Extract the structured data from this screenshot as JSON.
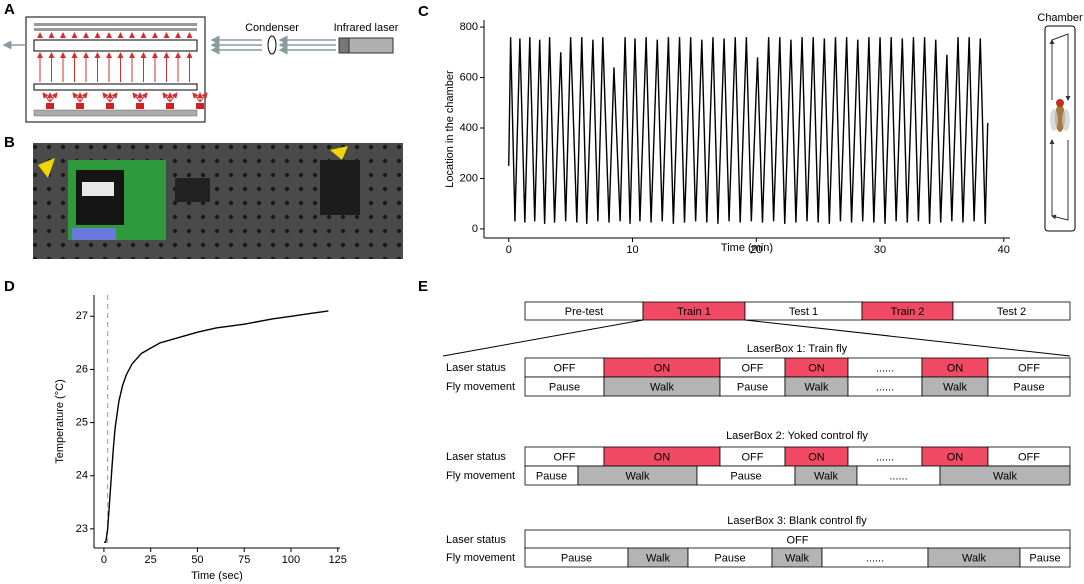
{
  "panel_labels": [
    "A",
    "B",
    "C",
    "D",
    "E"
  ],
  "panel_a": {
    "labels": [
      "Condenser",
      "Infrared laser"
    ]
  },
  "chamber_label": "Chamber",
  "chart_data": [
    {
      "type": "line",
      "xlabel": "Time (min)",
      "ylabel": "Location in the chamber",
      "color": "#000000",
      "x": [
        0,
        0.15,
        0.5,
        0.9,
        1.3,
        1.7,
        2.1,
        2.5,
        2.9,
        3.3,
        3.7,
        4.2,
        4.6,
        5.0,
        5.5,
        5.9,
        6.3,
        6.8,
        7.2,
        7.6,
        8.1,
        8.5,
        9.0,
        9.4,
        9.8,
        10.2,
        10.6,
        11.1,
        11.5,
        12.0,
        12.4,
        12.9,
        13.3,
        13.8,
        14.2,
        14.7,
        15.1,
        15.6,
        16.0,
        16.5,
        16.9,
        17.4,
        17.8,
        18.3,
        18.7,
        19.2,
        19.6,
        20.1,
        20.5,
        21.0,
        21.4,
        21.9,
        22.3,
        22.8,
        23.2,
        23.7,
        24.1,
        24.6,
        25.0,
        25.5,
        25.9,
        26.4,
        26.8,
        27.3,
        27.7,
        28.2,
        28.6,
        29.1,
        29.5,
        30.0,
        30.4,
        30.9,
        31.3,
        31.8,
        32.2,
        32.7,
        33.1,
        33.6,
        34.0,
        34.5,
        34.9,
        35.4,
        35.8,
        36.3,
        36.7,
        37.2,
        37.6,
        38.1,
        38.5,
        38.7
      ],
      "values": [
        250,
        760,
        30,
        755,
        25,
        760,
        30,
        750,
        20,
        760,
        25,
        700,
        30,
        760,
        25,
        760,
        20,
        750,
        30,
        760,
        25,
        640,
        30,
        760,
        20,
        755,
        30,
        760,
        25,
        750,
        30,
        760,
        20,
        760,
        25,
        760,
        30,
        750,
        25,
        760,
        20,
        755,
        30,
        760,
        25,
        760,
        30,
        680,
        25,
        760,
        30,
        760,
        20,
        750,
        25,
        760,
        30,
        760,
        25,
        755,
        20,
        760,
        30,
        760,
        25,
        750,
        30,
        760,
        25,
        760,
        20,
        760,
        30,
        755,
        25,
        760,
        30,
        760,
        20,
        750,
        25,
        690,
        30,
        760,
        25,
        760,
        30,
        755,
        20,
        420
      ],
      "xlim": [
        -2.0,
        40.5
      ],
      "ylim": [
        -36,
        828
      ],
      "xticks": [
        0,
        10,
        20,
        30,
        40
      ],
      "yticks": [
        0,
        200,
        400,
        600,
        800
      ]
    },
    {
      "type": "line",
      "xlabel": "Time (sec)",
      "ylabel": "Temperature (°C)",
      "color": "#000000",
      "x": [
        0,
        1,
        2,
        3,
        4,
        5,
        6,
        8,
        10,
        12,
        15,
        20,
        25,
        30,
        40,
        50,
        60,
        75,
        90,
        100,
        110,
        120
      ],
      "values": [
        22.75,
        22.75,
        23.0,
        23.5,
        24.0,
        24.5,
        24.9,
        25.4,
        25.7,
        25.9,
        26.1,
        26.3,
        26.4,
        26.5,
        26.6,
        26.7,
        26.78,
        26.85,
        26.95,
        27.0,
        27.05,
        27.1
      ],
      "marker_x": 2,
      "xlim": [
        -5.3,
        126.2
      ],
      "ylim": [
        22.64,
        27.4
      ],
      "xticks": [
        0,
        25,
        50,
        75,
        100,
        125
      ],
      "yticks": [
        23,
        24,
        25,
        26,
        27
      ]
    }
  ],
  "panel_e": {
    "colors": {
      "on": "#f04a64",
      "walk": "#b4b4b4"
    },
    "schedule": [
      "Pre-test",
      "Train 1",
      "Test 1",
      "Train 2",
      "Test 2"
    ],
    "boxes": [
      {
        "title": "LaserBox 1: Train fly",
        "rows": [
          {
            "label": "Laser status",
            "cells": [
              "OFF",
              "ON",
              "OFF",
              "ON",
              "......",
              "ON",
              "OFF"
            ]
          },
          {
            "label": "Fly movement",
            "cells": [
              "Pause",
              "Walk",
              "Pause",
              "Walk",
              "......",
              "Walk",
              "Pause"
            ]
          }
        ]
      },
      {
        "title": "LaserBox 2: Yoked control fly",
        "rows": [
          {
            "label": "Laser status",
            "cells": [
              "OFF",
              "ON",
              "OFF",
              "ON",
              "......",
              "ON",
              "OFF"
            ]
          },
          {
            "label": "Fly movement",
            "cells": [
              "Pause",
              "Walk",
              "Pause",
              "Walk",
              "......",
              "Walk"
            ]
          }
        ]
      },
      {
        "title": "LaserBox 3: Blank control fly",
        "rows": [
          {
            "label": "Laser status",
            "cells": [
              "OFF"
            ]
          },
          {
            "label": "Fly movement",
            "cells": [
              "Pause",
              "Walk",
              "Pause",
              "Walk",
              "......",
              "Walk",
              "Pause"
            ]
          }
        ]
      }
    ]
  }
}
